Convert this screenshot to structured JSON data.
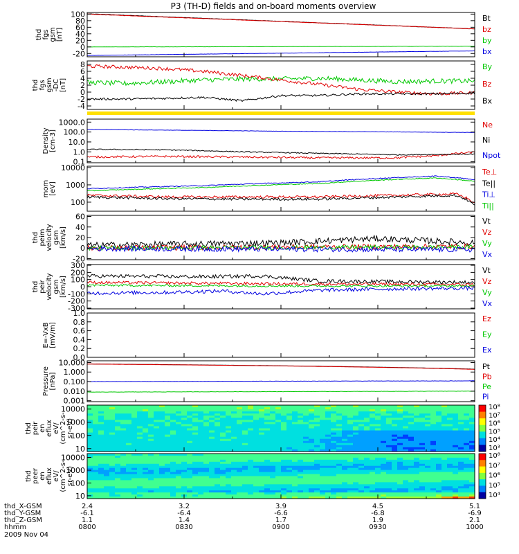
{
  "title": "P3 (TH-D) fields and on-board moments overview",
  "colors": {
    "black": "#000000",
    "red": "#e00000",
    "green": "#00c800",
    "blue": "#0000e0",
    "yellow": "#ffe000"
  },
  "chart_data": {
    "type": "line",
    "title": "P3 (TH-D) fields and on-board moments overview",
    "panels": [
      {
        "id": "fgs",
        "ylabel": [
          "thd",
          "fgs",
          "gsm",
          "[nT]"
        ],
        "ylim": [
          -30,
          105
        ],
        "ticks": [
          "100",
          "80",
          "60",
          "40",
          "20",
          "0",
          "-20"
        ],
        "tickv": [
          100,
          80,
          60,
          40,
          20,
          0,
          -20
        ],
        "legend": [
          "Bt",
          "bz",
          "by",
          "bx"
        ],
        "series": [
          {
            "name": "Bt",
            "color": "black",
            "x": [
              0,
              1
            ],
            "y": [
              101,
              55
            ],
            "noise": 0.5
          },
          {
            "name": "bz",
            "color": "red",
            "x": [
              0,
              1
            ],
            "y": [
              100,
              55
            ],
            "noise": 0.5
          },
          {
            "name": "by",
            "color": "green",
            "x": [
              0,
              1
            ],
            "y": [
              0,
              2
            ],
            "noise": 0.3
          },
          {
            "name": "bx",
            "color": "blue",
            "x": [
              0,
              1
            ],
            "y": [
              -26,
              -12
            ],
            "noise": 0.3
          }
        ]
      },
      {
        "id": "fgs-dc",
        "ylabel": [
          "thd",
          "fgs",
          "gsm",
          "-DC",
          "[nT]"
        ],
        "ylim": [
          -5,
          9
        ],
        "ticks": [
          "8",
          "6",
          "4",
          "2",
          "0",
          "-2",
          "-4"
        ],
        "tickv": [
          8,
          6,
          4,
          2,
          0,
          -2,
          -4
        ],
        "legend": [
          "By",
          "Bz",
          "Bx"
        ],
        "series": [
          {
            "name": "By",
            "color": "green",
            "x": [
              0,
              0.1,
              0.2,
              0.3,
              0.4,
              0.5,
              0.6,
              0.7,
              0.8,
              0.9,
              1
            ],
            "y": [
              2.8,
              2.5,
              3,
              3.5,
              3.8,
              3.8,
              4,
              3.5,
              3,
              3.2,
              3.2
            ],
            "noise": 0.7
          },
          {
            "name": "Bz",
            "color": "red",
            "x": [
              0,
              0.1,
              0.2,
              0.3,
              0.4,
              0.5,
              0.6,
              0.7,
              0.8,
              0.9,
              1
            ],
            "y": [
              7.5,
              7.2,
              6.8,
              6,
              4.8,
              3.5,
              2.2,
              0.8,
              0,
              -0.5,
              -0.2
            ],
            "noise": 0.5
          },
          {
            "name": "Bx",
            "color": "black",
            "x": [
              0,
              0.1,
              0.2,
              0.3,
              0.4,
              0.5,
              0.6,
              0.7,
              0.8,
              0.9,
              1
            ],
            "y": [
              -2,
              -2,
              -1.8,
              -1.5,
              -2.5,
              -1,
              -1,
              -0.5,
              -0.5,
              -0.5,
              -0.3
            ],
            "noise": 0.3
          }
        ]
      },
      {
        "id": "density",
        "ylabel": [
          "Density",
          "[cm-3]"
        ],
        "log": true,
        "ylim": [
          0.08,
          2000
        ],
        "ticks": [
          "1000.0",
          "100.0",
          "10.0",
          "1.0",
          "0.1"
        ],
        "tickv": [
          1000,
          100,
          10,
          1,
          0.1
        ],
        "legend": [
          "Ne",
          "Ni",
          "Npot"
        ],
        "series": [
          {
            "name": "Ne",
            "color": "red",
            "x": [
              0,
              0.2,
              0.4,
              0.6,
              0.8,
              0.9,
              1
            ],
            "y": [
              0.3,
              0.35,
              0.3,
              0.25,
              0.25,
              0.4,
              0.9
            ],
            "noise": 0.2
          },
          {
            "name": "Ni",
            "color": "black",
            "x": [
              0,
              0.2,
              0.4,
              0.6,
              0.8,
              1
            ],
            "y": [
              1.8,
              1.6,
              1.0,
              0.7,
              0.5,
              0.6
            ],
            "noise": 0.1
          },
          {
            "name": "Npot",
            "color": "blue",
            "x": [
              0,
              0.5,
              1
            ],
            "y": [
              180,
              120,
              90
            ],
            "noise": 0.03
          }
        ]
      },
      {
        "id": "temperature",
        "ylabel": [
          "mom",
          "[eV]"
        ],
        "log": true,
        "ylim": [
          30,
          12000
        ],
        "ticks": [
          "10000",
          "1000",
          "100"
        ],
        "tickv": [
          10000,
          1000,
          100
        ],
        "legend": [
          "Te⊥",
          "Te||",
          "Ti⊥",
          "Ti||"
        ],
        "series": [
          {
            "name": "Te⊥",
            "color": "red",
            "x": [
              0,
              0.2,
              0.4,
              0.6,
              0.8,
              0.95,
              1
            ],
            "y": [
              250,
              200,
              200,
              200,
              250,
              300,
              80
            ],
            "noise": 0.15
          },
          {
            "name": "Te||",
            "color": "black",
            "x": [
              0,
              0.2,
              0.4,
              0.6,
              0.8,
              0.95,
              1
            ],
            "y": [
              200,
              160,
              150,
              150,
              200,
              250,
              60
            ],
            "noise": 0.15
          },
          {
            "name": "Ti⊥",
            "color": "blue",
            "x": [
              0,
              0.3,
              0.6,
              0.9,
              1
            ],
            "y": [
              600,
              900,
              1500,
              3200,
              2000
            ],
            "noise": 0.05
          },
          {
            "name": "Ti||",
            "color": "green",
            "x": [
              0,
              0.3,
              0.6,
              0.9,
              1
            ],
            "y": [
              450,
              700,
              1200,
              2500,
              1600
            ],
            "noise": 0.05
          }
        ]
      },
      {
        "id": "velocity-peim",
        "ylabel": [
          "thd",
          "peim",
          "velocity",
          "gsm",
          "[km/s]"
        ],
        "ylim": [
          -22,
          62
        ],
        "ticks": [
          "60",
          "40",
          "20",
          "0",
          "-20"
        ],
        "tickv": [
          60,
          40,
          20,
          0,
          -20
        ],
        "legend": [
          "Vt",
          "Vz",
          "Vy",
          "Vx"
        ],
        "series": [
          {
            "name": "Vt",
            "color": "black",
            "x": [
              0,
              0.5,
              0.75,
              1
            ],
            "y": [
              5,
              10,
              18,
              10
            ],
            "noise": 6
          },
          {
            "name": "Vz",
            "color": "red",
            "x": [
              0,
              0.5,
              1
            ],
            "y": [
              0,
              2,
              3
            ],
            "noise": 5
          },
          {
            "name": "Vy",
            "color": "green",
            "x": [
              0,
              0.5,
              1
            ],
            "y": [
              0,
              1,
              2
            ],
            "noise": 4
          },
          {
            "name": "Vx",
            "color": "blue",
            "x": [
              0,
              0.5,
              1
            ],
            "y": [
              -1,
              -2,
              -3
            ],
            "noise": 5
          }
        ]
      },
      {
        "id": "velocity-peir",
        "ylabel": [
          "thd",
          "peir",
          "velocity",
          "gsm",
          "[km/s]"
        ],
        "ylim": [
          -310,
          310
        ],
        "ticks": [
          "300",
          "200",
          "100",
          "0",
          "-100",
          "-200",
          "-300"
        ],
        "tickv": [
          300,
          200,
          100,
          0,
          -100,
          -200,
          -300
        ],
        "legend": [
          "Vt",
          "Vz",
          "Vy",
          "Vx"
        ],
        "series": [
          {
            "name": "Vt",
            "color": "black",
            "x": [
              0,
              0.3,
              0.45,
              0.6,
              1
            ],
            "y": [
              150,
              140,
              150,
              80,
              60
            ],
            "noise": 25
          },
          {
            "name": "Vz",
            "color": "red",
            "x": [
              0,
              0.5,
              1
            ],
            "y": [
              60,
              40,
              30
            ],
            "noise": 20
          },
          {
            "name": "Vy",
            "color": "green",
            "x": [
              0,
              0.5,
              1
            ],
            "y": [
              20,
              10,
              10
            ],
            "noise": 15
          },
          {
            "name": "Vx",
            "color": "blue",
            "x": [
              0,
              0.2,
              0.35,
              0.45,
              0.6,
              0.8,
              1
            ],
            "y": [
              -90,
              -80,
              -60,
              -100,
              -50,
              -30,
              -20
            ],
            "noise": 25
          }
        ]
      },
      {
        "id": "efield",
        "ylabel": [
          "E=-VxB",
          "[mV/m]"
        ],
        "ylim": [
          0,
          1
        ],
        "ticks": [
          "1.0",
          "0.8",
          "0.6",
          "0.4",
          "0.2",
          "0.0"
        ],
        "tickv": [
          1,
          0.8,
          0.6,
          0.4,
          0.2,
          0
        ],
        "legend": [
          "Ez",
          "Ey",
          "Ex"
        ],
        "series": []
      },
      {
        "id": "pressure",
        "ylabel": [
          "Pressure",
          "[nPa]"
        ],
        "log": true,
        "ylim": [
          0.0008,
          15
        ],
        "ticks": [
          "10.000",
          "1.000",
          "0.100",
          "0.010",
          "0.001"
        ],
        "tickv": [
          10,
          1,
          0.1,
          0.01,
          0.001
        ],
        "legend": [
          "Pt",
          "Pb",
          "Pe",
          "Pi"
        ],
        "series": [
          {
            "name": "Pt",
            "color": "black",
            "x": [
              0,
              1
            ],
            "y": [
              7,
              2
            ],
            "noise": 0.01
          },
          {
            "name": "Pb",
            "color": "red",
            "x": [
              0,
              1
            ],
            "y": [
              6.8,
              1.9
            ],
            "noise": 0.01
          },
          {
            "name": "Pe",
            "color": "green",
            "x": [
              0,
              1
            ],
            "y": [
              0.008,
              0.01
            ],
            "noise": 0.03
          },
          {
            "name": "Pi",
            "color": "blue",
            "x": [
              0,
              1
            ],
            "y": [
              0.1,
              0.12
            ],
            "noise": 0.03
          }
        ]
      },
      {
        "id": "peir-spectrogram",
        "type": "heatmap",
        "ylabel": [
          "thd",
          "peir",
          "en",
          "eflux",
          "eV/",
          "(cm^2-s-",
          "sr-eV)"
        ],
        "ticks": [
          "10000",
          "1000",
          "100",
          "10"
        ],
        "colorbar": [
          "10⁸",
          "10⁷",
          "10⁶",
          "10⁵",
          "10⁴",
          "10³"
        ]
      },
      {
        "id": "peer-spectrogram",
        "type": "heatmap",
        "ylabel": [
          "thd",
          "peer",
          "en",
          "eflux",
          "eV/",
          "(cm^2-s-",
          "sr-eV)"
        ],
        "ticks": [
          "10000",
          "1000",
          "100",
          "10"
        ],
        "colorbar": [
          "10⁸",
          "10⁷",
          "10⁶",
          "10⁵",
          "10⁴"
        ]
      }
    ],
    "xaxis": {
      "rows": [
        {
          "label": "thd_X-GSM",
          "values": [
            "2.4",
            "3.2",
            "3.9",
            "4.5",
            "5.1"
          ]
        },
        {
          "label": "thd_Y-GSM",
          "values": [
            "-6.1",
            "-6.4",
            "-6.6",
            "-6.8",
            "-6.9"
          ]
        },
        {
          "label": "thd_Z-GSM",
          "values": [
            "1.1",
            "1.4",
            "1.7",
            "1.9",
            "2.1"
          ]
        },
        {
          "label": "hhmm",
          "values": [
            "0800",
            "0830",
            "0900",
            "0930",
            "1000"
          ]
        }
      ],
      "date": "2009 Nov 04"
    }
  }
}
